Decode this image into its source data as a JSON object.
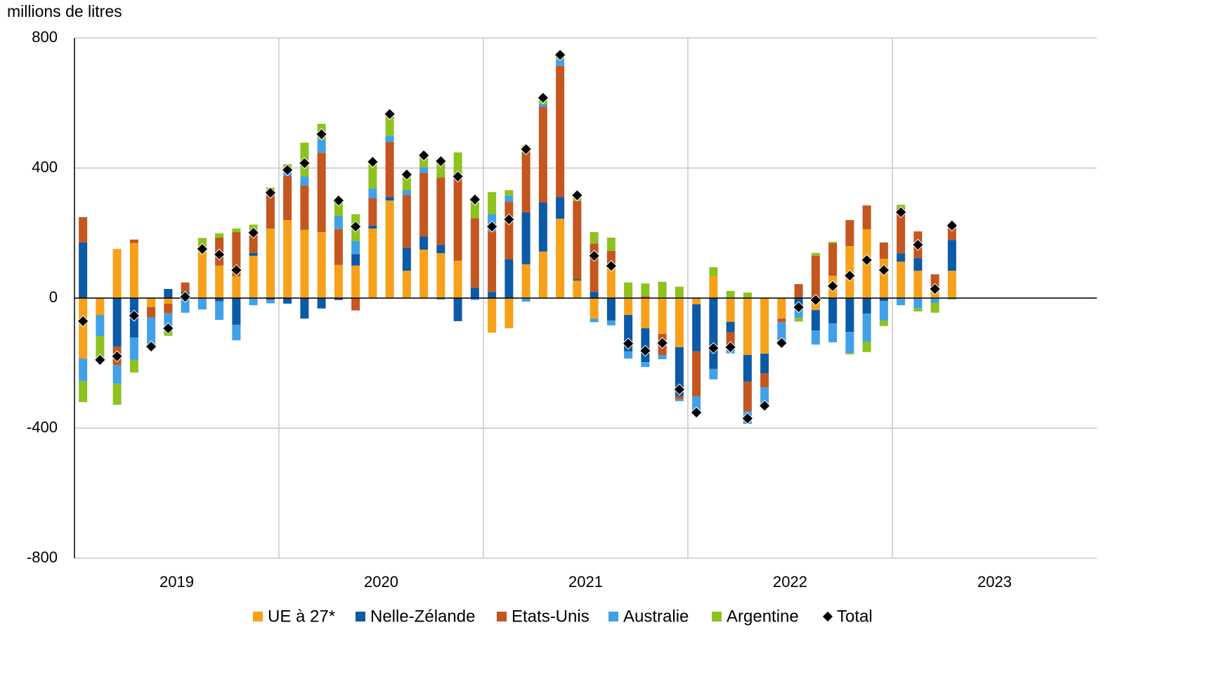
{
  "chart_data": {
    "type": "stacked-bar",
    "ylabel": "millions de litres",
    "xgroups": [
      "2019",
      "2020",
      "2021",
      "2022",
      "2023"
    ],
    "categories": [
      null,
      null,
      null,
      null,
      null,
      null,
      null,
      null,
      null,
      null,
      null,
      null,
      null,
      null,
      null,
      null,
      null,
      null,
      null,
      null,
      null,
      null,
      null,
      null,
      null,
      null,
      null,
      null,
      null,
      null,
      null,
      null,
      null,
      null,
      null,
      null,
      null,
      null,
      null,
      null,
      null,
      null,
      null,
      null,
      null,
      null,
      null,
      null,
      null,
      null,
      null,
      null
    ],
    "ylim": [
      -800,
      800
    ],
    "yticks": [
      -800,
      -400,
      0,
      400,
      800
    ],
    "grid": true,
    "legend": "bottom",
    "series": [
      {
        "name": "UE à 27*",
        "color": "#f7a11a",
        "values": [
          -186,
          -52,
          151,
          169,
          -28,
          -17,
          5,
          145,
          100,
          67,
          130,
          214,
          240,
          210,
          203,
          102,
          100,
          214,
          300,
          84,
          149,
          138,
          115,
          0,
          -106,
          -93,
          104,
          143,
          244,
          54,
          -63,
          93,
          -52,
          -93,
          -110,
          -151,
          -19,
          67,
          -73,
          -175,
          -171,
          -63,
          0,
          -37,
          69,
          160,
          212,
          121,
          112,
          84,
          19,
          84
        ]
      },
      {
        "name": "Nelle-Zélande",
        "color": "#0b5aa6",
        "values": [
          171,
          0,
          -149,
          -121,
          0,
          28,
          15,
          0,
          -10,
          -82,
          9,
          -5,
          -17,
          -63,
          -32,
          -6,
          35,
          9,
          11,
          71,
          41,
          26,
          -71,
          32,
          19,
          119,
          160,
          151,
          67,
          4,
          19,
          -69,
          -112,
          -104,
          0,
          -151,
          -145,
          -218,
          -32,
          -82,
          -61,
          0,
          -35,
          -63,
          -78,
          -104,
          -48,
          -9,
          26,
          39,
          0,
          95
        ]
      },
      {
        "name": "Etats-Unis",
        "color": "#c4561f",
        "values": [
          78,
          0,
          -58,
          11,
          -32,
          -30,
          28,
          0,
          86,
          136,
          65,
          110,
          135,
          136,
          244,
          110,
          -38,
          84,
          169,
          162,
          195,
          207,
          266,
          214,
          186,
          177,
          188,
          294,
          403,
          241,
          149,
          52,
          0,
          6,
          -65,
          -9,
          -138,
          0,
          -52,
          -91,
          -43,
          -11,
          43,
          130,
          100,
          80,
          73,
          50,
          138,
          82,
          54,
          48
        ]
      },
      {
        "name": "Australie",
        "color": "#40a1e8",
        "values": [
          -69,
          -65,
          -56,
          -69,
          -89,
          -52,
          -45,
          -35,
          -57,
          -48,
          -22,
          -11,
          12,
          28,
          41,
          41,
          41,
          30,
          19,
          15,
          17,
          -5,
          0,
          -6,
          54,
          19,
          -11,
          9,
          19,
          0,
          -11,
          -15,
          -22,
          -15,
          -13,
          -6,
          -50,
          -32,
          -13,
          -39,
          -56,
          -64,
          -26,
          -43,
          -58,
          -65,
          -86,
          -60,
          -22,
          -32,
          -15,
          -4
        ]
      },
      {
        "name": "Argentine",
        "color": "#8dc21f",
        "values": [
          -65,
          -73,
          -65,
          -39,
          0,
          -17,
          0,
          40,
          13,
          11,
          22,
          16,
          25,
          104,
          48,
          53,
          82,
          86,
          67,
          43,
          39,
          48,
          67,
          65,
          67,
          17,
          17,
          22,
          15,
          17,
          35,
          41,
          48,
          39,
          50,
          35,
          0,
          28,
          22,
          17,
          0,
          0,
          -11,
          9,
          4,
          -4,
          -32,
          -17,
          11,
          -9,
          -30,
          0
        ]
      },
      {
        "name": "Total",
        "color": "#000000",
        "kind": "marker",
        "values": [
          -71,
          -190,
          -179,
          -54,
          -149,
          -93,
          4,
          151,
          134,
          86,
          201,
          324,
          394,
          415,
          504,
          300,
          220,
          419,
          566,
          380,
          439,
          421,
          374,
          303,
          220,
          242,
          458,
          616,
          748,
          316,
          130,
          99,
          -140,
          -162,
          -138,
          -281,
          -352,
          -154,
          -151,
          -370,
          -331,
          -138,
          -28,
          -6,
          37,
          69,
          117,
          86,
          264,
          164,
          28,
          223
        ]
      }
    ]
  }
}
